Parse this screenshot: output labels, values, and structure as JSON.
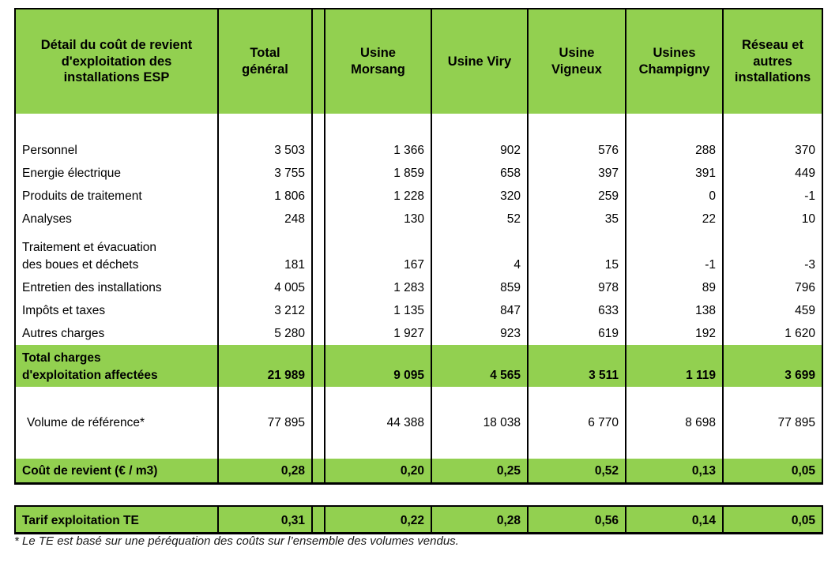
{
  "main_table": {
    "header": {
      "label_column": "Détail du coût de revient d'exploitation des installations ESP",
      "columns": [
        "Total général",
        "Usine Morsang",
        "Usine Viry",
        "Usine Vigneux",
        "Usines Champigny",
        "Réseau et autres installations"
      ]
    },
    "charge_rows": [
      {
        "label": "Personnel",
        "values": [
          "3 503",
          "1 366",
          "902",
          "576",
          "288",
          "370"
        ]
      },
      {
        "label": "Energie électrique",
        "values": [
          "3 755",
          "1 859",
          "658",
          "397",
          "391",
          "449"
        ]
      },
      {
        "label": "Produits de traitement",
        "values": [
          "1 806",
          "1 228",
          "320",
          "259",
          "0",
          "-1"
        ]
      },
      {
        "label": "Analyses",
        "values": [
          "248",
          "130",
          "52",
          "35",
          "22",
          "10"
        ]
      },
      {
        "label": "Traitement et évacuation des boues et déchets",
        "values": [
          "181",
          "167",
          "4",
          "15",
          "-1",
          "-3"
        ]
      },
      {
        "label": "Entretien des installations",
        "values": [
          "4 005",
          "1 283",
          "859",
          "978",
          "89",
          "796"
        ]
      },
      {
        "label": "Impôts et taxes",
        "values": [
          "3 212",
          "1 135",
          "847",
          "633",
          "138",
          "459"
        ]
      },
      {
        "label": "Autres charges",
        "values": [
          "5 280",
          "1 927",
          "923",
          "619",
          "192",
          "1 620"
        ]
      }
    ],
    "total_row": {
      "label": "Total charges d'exploitation affectées",
      "values": [
        "21 989",
        "9 095",
        "4 565",
        "3 511",
        "1 119",
        "3 699"
      ]
    },
    "volume_row": {
      "label": "Volume de référence*",
      "values": [
        "77 895",
        "44 388",
        "18 038",
        "6 770",
        "8 698",
        "77 895"
      ]
    },
    "cost_row": {
      "label": "Coût de revient (€ / m3)",
      "values": [
        "0,28",
        "0,20",
        "0,25",
        "0,52",
        "0,13",
        "0,05"
      ]
    }
  },
  "tarif_table": {
    "row": {
      "label": "Tarif exploitation TE",
      "values": [
        "0,31",
        "0,22",
        "0,28",
        "0,56",
        "0,14",
        "0,05"
      ]
    }
  },
  "footnote": "* Le TE est basé sur une péréquation des coûts sur l’ensemble des volumes vendus.",
  "colors": {
    "green": "#92D050",
    "border": "#000000",
    "text": "#000000",
    "page_bg": "#FFFFFF"
  }
}
